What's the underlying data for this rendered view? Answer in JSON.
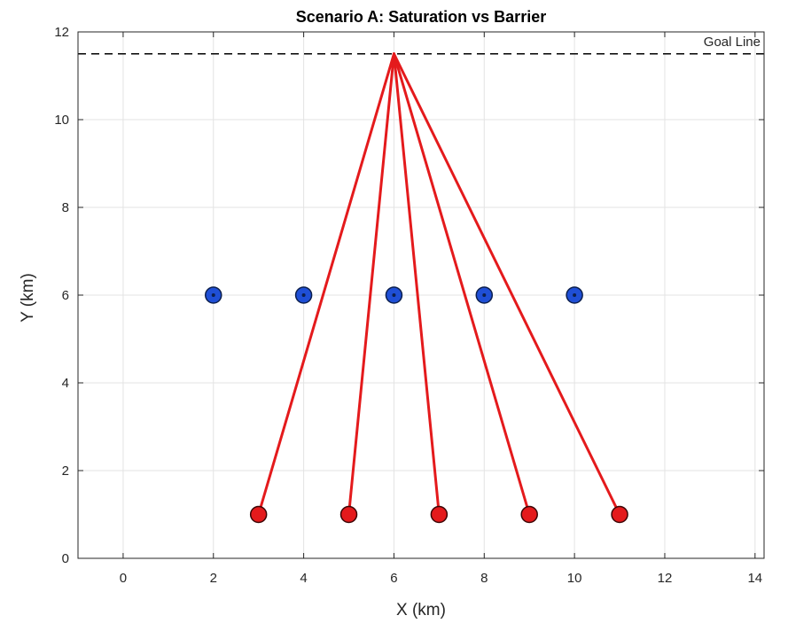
{
  "chart_data": {
    "type": "scatter",
    "title": "Scenario A: Saturation vs Barrier",
    "xlabel": "X (km)",
    "ylabel": "Y (km)",
    "xlim": [
      -1,
      14.2
    ],
    "ylim": [
      0,
      12
    ],
    "xticks": [
      "0",
      "2",
      "4",
      "6",
      "8",
      "10",
      "12",
      "14"
    ],
    "yticks": [
      "0",
      "2",
      "4",
      "6",
      "8",
      "10",
      "12"
    ],
    "grid": true,
    "goal_line": {
      "y": 11.5,
      "label": "Goal Line",
      "color": "#000000"
    },
    "defenders": {
      "color": "#1f4fd6",
      "points": [
        {
          "x": 2,
          "y": 6
        },
        {
          "x": 4,
          "y": 6
        },
        {
          "x": 6,
          "y": 6
        },
        {
          "x": 8,
          "y": 6
        },
        {
          "x": 10,
          "y": 6
        }
      ]
    },
    "attackers": {
      "color": "#e41a1c",
      "points": [
        {
          "x": 3,
          "y": 1
        },
        {
          "x": 5,
          "y": 1
        },
        {
          "x": 7,
          "y": 1
        },
        {
          "x": 9,
          "y": 1
        },
        {
          "x": 11,
          "y": 1
        }
      ]
    },
    "trajectories": {
      "color": "#e41a1c",
      "target": {
        "x": 6,
        "y": 11.5
      }
    }
  }
}
